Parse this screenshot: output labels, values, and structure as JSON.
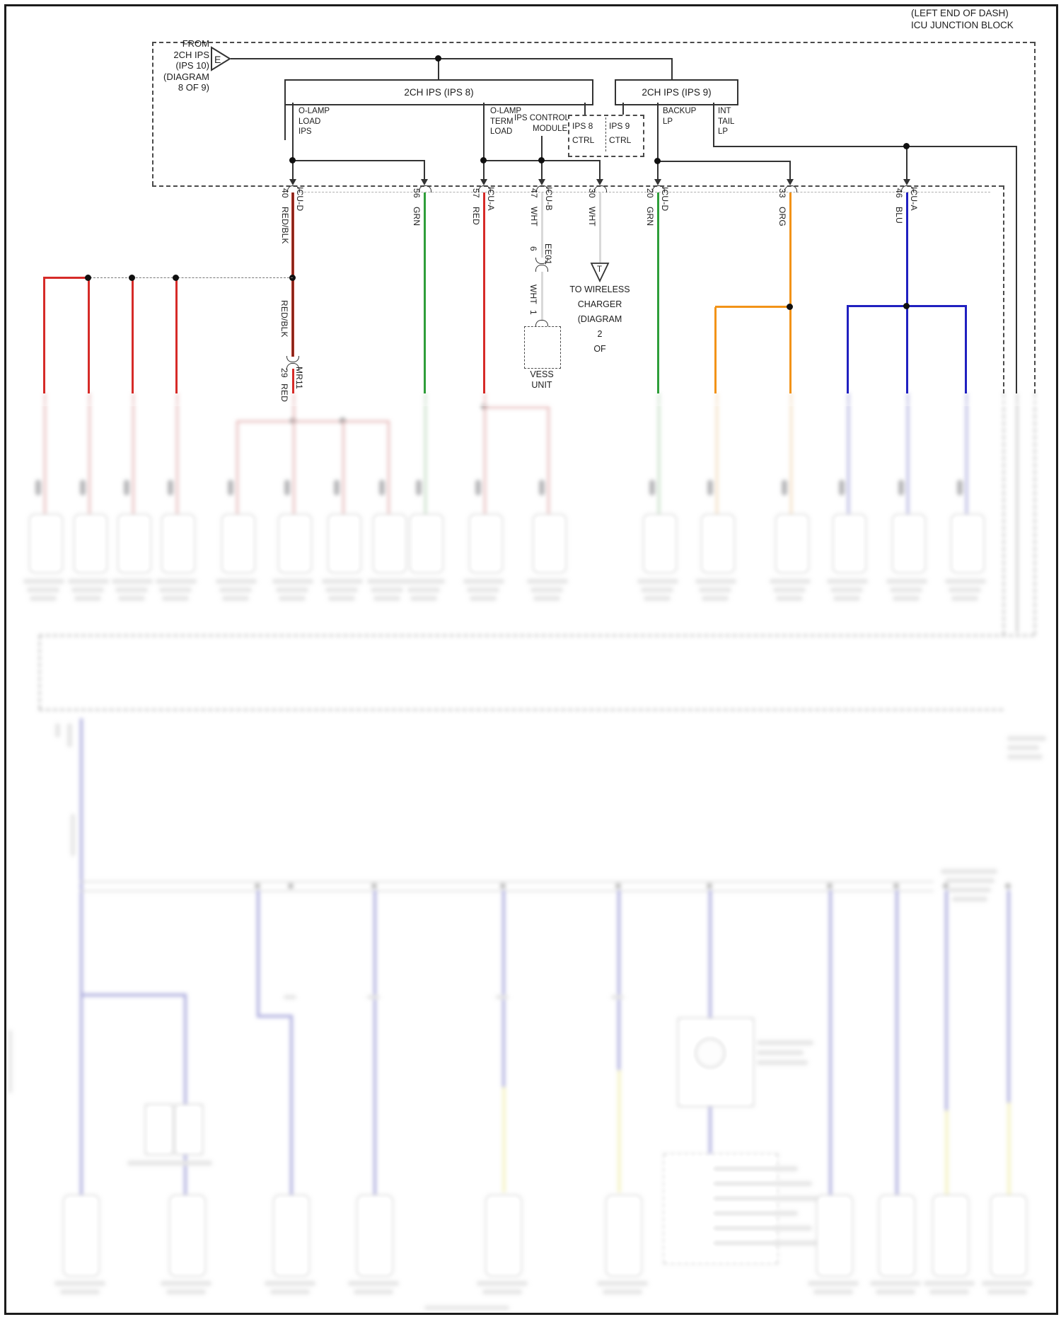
{
  "corner": {
    "line1": "(LEFT END OF DASH)",
    "line2": "ICU JUNCTION BLOCK"
  },
  "source_e": {
    "tag": "E",
    "label_lines": [
      "FROM",
      "2CH IPS",
      "(IPS 10)",
      "(DIAGRAM",
      "8 OF 9)"
    ]
  },
  "boxes": {
    "ips8_title": "2CH IPS (IPS 8)",
    "ips9_title": "2CH IPS (IPS 9)"
  },
  "cells": {
    "o_lamp_load_ips": "O-LAMP\nLOAD\nIPS",
    "o_lamp_term_load": "O-LAMP\nTERM\nLOAD",
    "ips_control_line1": "IPS CONTROL",
    "ips_control_line2": "MODULE",
    "ips8_ctrl": "IPS 8\nCTRL",
    "ips9_ctrl": "IPS 9\nCTRL",
    "backup_lp": "BACKUP\nLP",
    "int_tail_lp": "INT\nTAIL\nLP"
  },
  "pins": [
    {
      "num": "40",
      "conn": "ICU-D",
      "color": "RED/BLK"
    },
    {
      "num": "56",
      "conn": "",
      "color": "GRN"
    },
    {
      "num": "57",
      "conn": "ICU-A",
      "color": "RED"
    },
    {
      "num": "47",
      "conn": "ICU-B",
      "color": "WHT"
    },
    {
      "num": "30",
      "conn": "",
      "color": "WHT"
    },
    {
      "num": "20",
      "conn": "ICU-D",
      "color": "GRN"
    },
    {
      "num": "33",
      "conn": "",
      "color": "ORG"
    },
    {
      "num": "46",
      "conn": "ICU-A",
      "color": "BLU"
    }
  ],
  "wire40_branch": {
    "color_upper": "RED/BLK",
    "pin": "29",
    "connector": "MR11",
    "color_lower": "RED"
  },
  "vess": {
    "pin_upper": "6",
    "connector": "EE01",
    "color": "WHT",
    "pin_lower": "1",
    "unit_line1": "VESS",
    "unit_line2": "UNIT"
  },
  "wireless": {
    "tag": "T",
    "dest_lines": [
      "TO WIRELESS",
      "CHARGER",
      "(DIAGRAM",
      "2",
      "OF"
    ]
  },
  "wire_color_hex": {
    "RED/BLK": "#b6342a",
    "RED": "#d62b28",
    "GRN": "#2f9e3a",
    "WHT": "#d9d9d9",
    "ORG": "#f29318",
    "BLU": "#2020c0"
  }
}
